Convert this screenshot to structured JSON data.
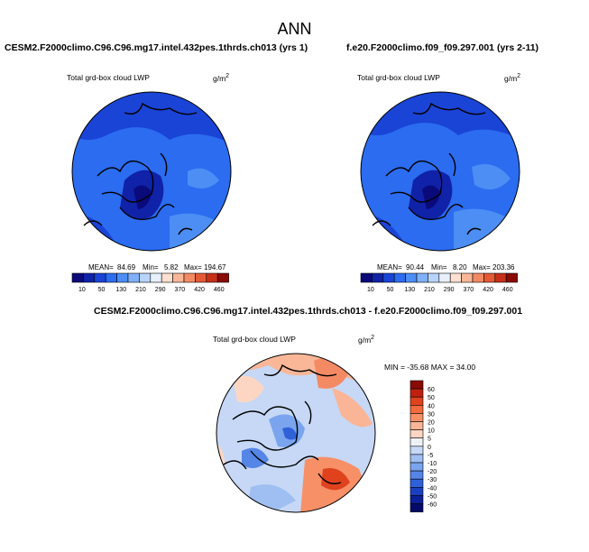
{
  "page_title": "ANN",
  "panels": [
    {
      "case_title": "CESM2.F2000climo.C96.C96.mg17.intel.432pes.1thrds.ch013 (yrs 1)",
      "field_label": "Total grd-box cloud LWP",
      "units_base": "g/m",
      "units_exp": "2",
      "stats": {
        "mean_label": "MEAN=",
        "mean": "84.69",
        "min_label": "Min=",
        "min": "5.82",
        "max_label": "Max=",
        "max": "194.67"
      },
      "colorbar": {
        "colors": [
          "#0a0a7a",
          "#0f22a8",
          "#1a44d6",
          "#2b6cf0",
          "#4d8ef5",
          "#80b0f8",
          "#b8d4fb",
          "#e8f0fd",
          "#fde0cf",
          "#f9b798",
          "#f48a64",
          "#e45a35",
          "#c73018",
          "#8a0a05"
        ],
        "labels": [
          "10",
          "50",
          "130",
          "210",
          "290",
          "370",
          "420",
          "460"
        ]
      }
    },
    {
      "case_title": "f.e20.F2000climo.f09_f09.297.001 (yrs 2-11)",
      "field_label": "Total grd-box cloud LWP",
      "units_base": "g/m",
      "units_exp": "2",
      "stats": {
        "mean_label": "MEAN=",
        "mean": "90.44",
        "min_label": "Min=",
        "min": "8.20",
        "max_label": "Max=",
        "max": "203.36"
      },
      "colorbar": {
        "colors": [
          "#0a0a7a",
          "#0f22a8",
          "#1a44d6",
          "#2b6cf0",
          "#4d8ef5",
          "#80b0f8",
          "#b8d4fb",
          "#e8f0fd",
          "#fde0cf",
          "#f9b798",
          "#f48a64",
          "#e45a35",
          "#c73018",
          "#8a0a05"
        ],
        "labels": [
          "10",
          "50",
          "130",
          "210",
          "290",
          "370",
          "420",
          "460"
        ]
      }
    }
  ],
  "diff": {
    "case_title": "CESM2.F2000climo.C96.C96.mg17.intel.432pes.1thrds.ch013 - f.e20.F2000climo.f09_f09.297.001",
    "field_label": "Total grd-box cloud LWP",
    "units_base": "g/m",
    "units_exp": "2",
    "minmax_text": "MIN = -35.68 MAX = 34.00",
    "colorbar": {
      "colors": [
        "#8a0a05",
        "#c0200f",
        "#e0421e",
        "#f26a3d",
        "#f79067",
        "#fab597",
        "#fcd6c3",
        "#eef2f7",
        "#c6d8f5",
        "#9fbff2",
        "#7aa4ee",
        "#5585e6",
        "#2f62d9",
        "#1a3fc0",
        "#0c1f98",
        "#050a6a"
      ],
      "labels": [
        "60",
        "50",
        "40",
        "30",
        "20",
        "10",
        "5",
        "0",
        "-5",
        "-10",
        "-20",
        "-30",
        "-40",
        "-50",
        "-60"
      ]
    }
  }
}
